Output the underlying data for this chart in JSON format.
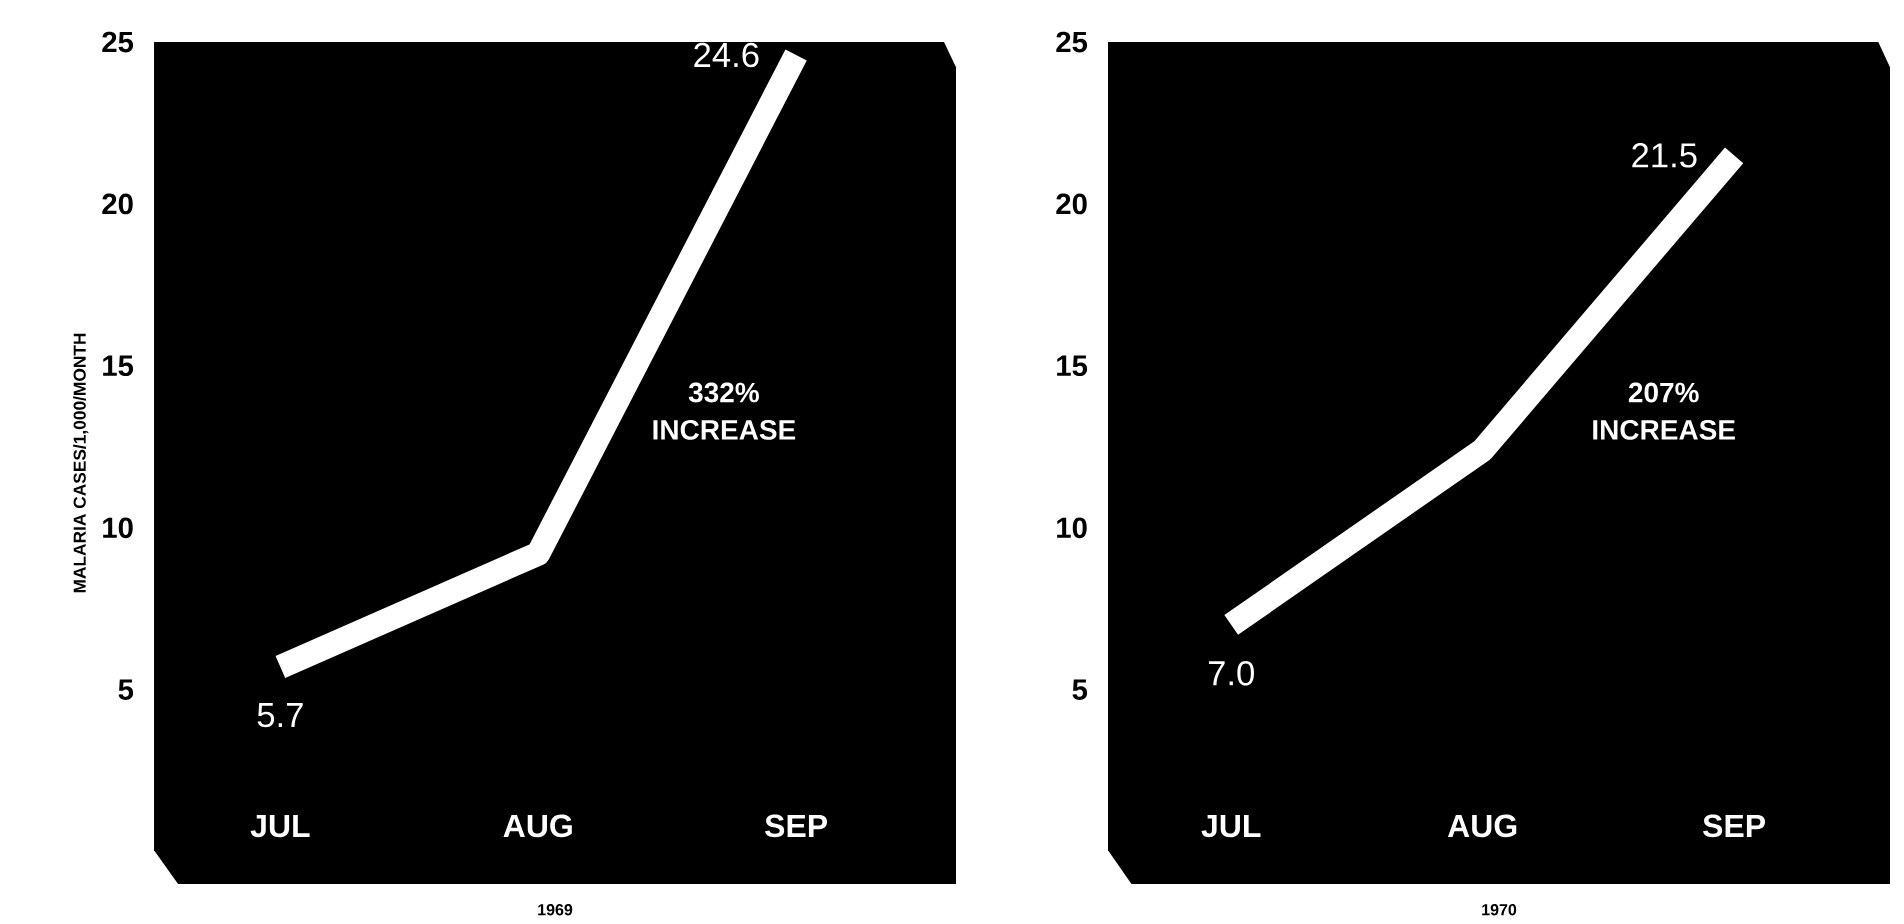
{
  "chart_data": [
    {
      "type": "line",
      "xlabel": "1969",
      "ylabel": "MALARIA CASES/1,000/MONTH",
      "categories": [
        "JUL",
        "AUG",
        "SEP"
      ],
      "values": [
        5.7,
        9.2,
        24.6
      ],
      "value_labels": [
        "5.7",
        null,
        "24.6"
      ],
      "color": "#ffffff",
      "ylim": [
        -1,
        25
      ],
      "yticks": [
        5,
        10,
        15,
        20,
        25
      ],
      "annotations": [
        "332% INCREASE"
      ]
    },
    {
      "type": "line",
      "xlabel": "1970",
      "categories": [
        "JUL",
        "AUG",
        "SEP"
      ],
      "values": [
        7.0,
        12.4,
        21.5
      ],
      "value_labels": [
        "7.0",
        null,
        "21.5"
      ],
      "color": "#ffffff",
      "ylim": [
        -1,
        25
      ],
      "yticks": [
        5,
        10,
        15,
        20,
        25
      ],
      "annotations": [
        "207% INCREASE"
      ]
    }
  ]
}
